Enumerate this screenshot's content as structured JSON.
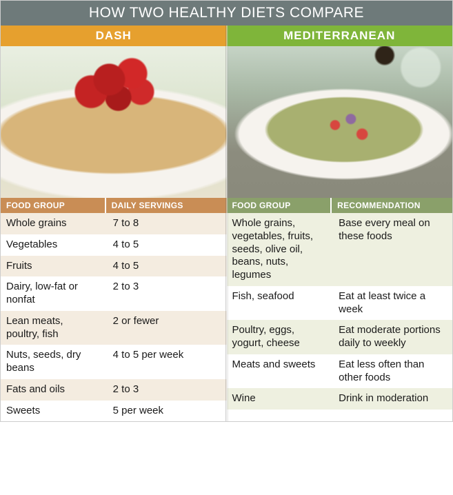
{
  "title": "HOW TWO HEALTHY DIETS COMPARE",
  "colors": {
    "title_bg": "#6e7a7a",
    "title_fg": "#ffffff",
    "dash_accent": "#e6a02e",
    "dash_head_bg": "#c98d55",
    "dash_row_a": "#f4ece0",
    "dash_row_b": "#ffffff",
    "med_accent": "#7fb53a",
    "med_head_bg": "#8aa06a",
    "med_row_a": "#eef0e0",
    "med_row_b": "#ffffff",
    "text": "#1a1a1a"
  },
  "left": {
    "name": "DASH",
    "head_left": "FOOD GROUP",
    "head_right": "DAILY SERVINGS",
    "rows": [
      {
        "group": "Whole grains",
        "val": "7 to 8"
      },
      {
        "group": "Vegetables",
        "val": "4 to 5"
      },
      {
        "group": "Fruits",
        "val": "4 to 5"
      },
      {
        "group": "Dairy, low-fat or nonfat",
        "val": "2 to 3"
      },
      {
        "group": "Lean meats, poultry, fish",
        "val": "2 or fewer"
      },
      {
        "group": "Nuts, seeds, dry beans",
        "val": "4 to 5 per week"
      },
      {
        "group": "Fats and oils",
        "val": "2 to 3"
      },
      {
        "group": "Sweets",
        "val": "5 per week"
      }
    ]
  },
  "right": {
    "name": "MEDITERRANEAN",
    "head_left": "FOOD GROUP",
    "head_right": "RECOMMENDATION",
    "rows": [
      {
        "group": "Whole grains, vegetables, fruits, seeds, olive oil, beans, nuts, legumes",
        "val": "Base every meal on these foods"
      },
      {
        "group": "Fish, seafood",
        "val": "Eat at least twice a week"
      },
      {
        "group": "Poultry, eggs, yogurt, cheese",
        "val": "Eat moderate portions daily to weekly"
      },
      {
        "group": "Meats and sweets",
        "val": "Eat less often than other foods"
      },
      {
        "group": "Wine",
        "val": "Drink in moderation"
      }
    ]
  }
}
